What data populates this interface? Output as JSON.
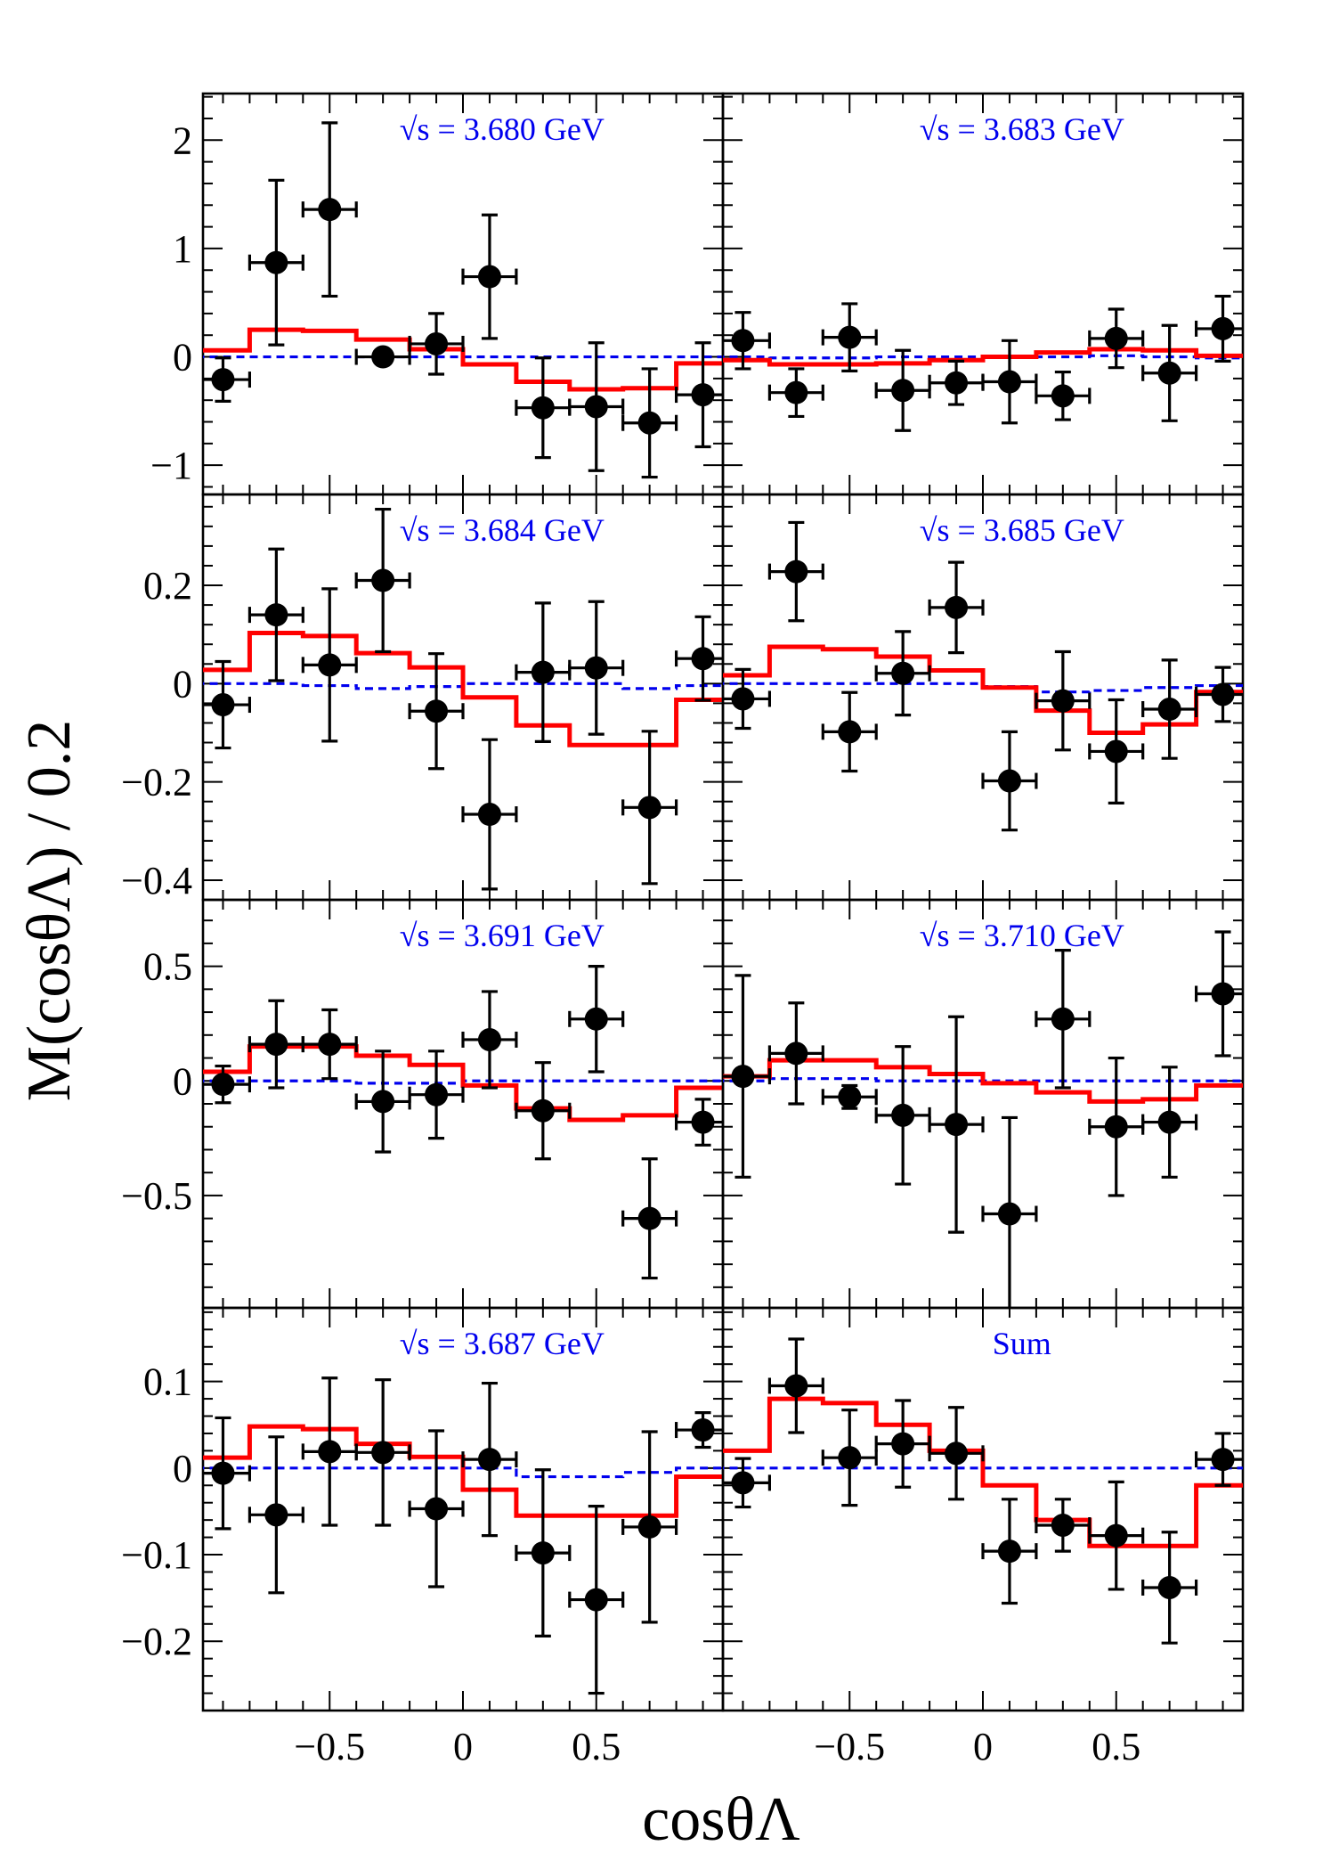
{
  "chart_data": {
    "type": "scatter",
    "xlabel": "cosθΛ",
    "ylabel": "M(cosθΛ) / 0.2",
    "xlim": [
      -0.975,
      0.975
    ],
    "x_ticks": [
      -0.5,
      0,
      0.5
    ],
    "x_tick_labels": [
      "−0.5",
      "0",
      "0.5"
    ],
    "bins": [
      -0.9,
      -0.7,
      -0.5,
      -0.3,
      -0.1,
      0.1,
      0.3,
      0.5,
      0.7,
      0.9
    ],
    "bin_half_width": 0.1,
    "legend": "none",
    "colors": {
      "data": "#000000",
      "fit": "#ff0000",
      "background": "#0000ee",
      "title": "#0000ee"
    },
    "series_names": [
      "data",
      "fit",
      "background"
    ],
    "panels": [
      {
        "title": "√s = 3.680 GeV",
        "ylim": [
          -1.27,
          2.43
        ],
        "y_ticks": [
          -1,
          0,
          1,
          2
        ],
        "y_tick_labels": [
          "−1",
          "0",
          "1",
          "2"
        ],
        "data": [
          -0.21,
          0.87,
          1.36,
          0.0,
          0.12,
          0.74,
          -0.47,
          -0.46,
          -0.61,
          -0.35
        ],
        "errors": [
          0.2,
          0.76,
          0.8,
          0.0,
          0.28,
          0.57,
          0.46,
          0.59,
          0.5,
          0.48
        ],
        "fit": [
          0.06,
          0.25,
          0.24,
          0.16,
          0.07,
          -0.07,
          -0.23,
          -0.3,
          -0.29,
          -0.06
        ],
        "background": [
          0.0,
          0.0,
          0.0,
          0.0,
          0.0,
          0.0,
          0.0,
          0.0,
          0.0,
          0.0
        ]
      },
      {
        "title": "√s = 3.683 GeV",
        "ylim": [
          -1.27,
          2.43
        ],
        "y_ticks": [
          -1,
          0,
          1,
          2
        ],
        "y_tick_labels": [
          "",
          "",
          "",
          ""
        ],
        "data": [
          0.15,
          -0.33,
          0.18,
          -0.31,
          -0.24,
          -0.23,
          -0.36,
          0.17,
          -0.15,
          0.26
        ],
        "errors": [
          0.26,
          0.22,
          0.31,
          0.37,
          0.2,
          0.38,
          0.22,
          0.27,
          0.44,
          0.3
        ],
        "fit": [
          -0.03,
          -0.07,
          -0.07,
          -0.06,
          -0.03,
          0.0,
          0.04,
          0.07,
          0.06,
          0.01
        ],
        "background": [
          0.0,
          -0.01,
          -0.01,
          0.0,
          0.0,
          0.0,
          0.0,
          0.01,
          0.0,
          -0.01
        ]
      },
      {
        "title": "√s = 3.684 GeV",
        "ylim": [
          -0.44,
          0.385
        ],
        "y_ticks": [
          -0.4,
          -0.2,
          0,
          0.2
        ],
        "y_tick_labels": [
          "−0.4",
          "−0.2",
          "0",
          "0.2"
        ],
        "data": [
          -0.043,
          0.14,
          0.038,
          0.21,
          -0.056,
          -0.266,
          0.023,
          0.032,
          -0.252,
          0.051
        ],
        "errors": [
          0.088,
          0.134,
          0.155,
          0.145,
          0.117,
          0.152,
          0.141,
          0.135,
          0.155,
          0.085
        ],
        "fit": [
          0.028,
          0.103,
          0.097,
          0.062,
          0.033,
          -0.028,
          -0.085,
          -0.125,
          -0.125,
          -0.033
        ],
        "background": [
          0.0,
          0.0,
          -0.004,
          -0.01,
          -0.006,
          0.0,
          0.0,
          0.0,
          -0.01,
          -0.004
        ]
      },
      {
        "title": "√s = 3.685 GeV",
        "ylim": [
          -0.44,
          0.385
        ],
        "y_ticks": [
          -0.4,
          -0.2,
          0,
          0.2
        ],
        "y_tick_labels": [
          "",
          "",
          "",
          ""
        ],
        "data": [
          -0.031,
          0.228,
          -0.098,
          0.021,
          0.155,
          -0.198,
          -0.035,
          -0.138,
          -0.052,
          -0.022
        ],
        "errors": [
          0.06,
          0.1,
          0.08,
          0.085,
          0.092,
          0.1,
          0.1,
          0.105,
          0.1,
          0.055
        ],
        "fit": [
          0.017,
          0.075,
          0.07,
          0.055,
          0.027,
          -0.008,
          -0.055,
          -0.1,
          -0.083,
          -0.017
        ],
        "background": [
          0.0,
          0.0,
          0.0,
          0.0,
          0.0,
          -0.006,
          -0.017,
          -0.014,
          -0.008,
          -0.004
        ]
      },
      {
        "title": "√s = 3.691 GeV",
        "ylim": [
          -0.99,
          0.79
        ],
        "y_ticks": [
          -0.5,
          0,
          0.5
        ],
        "y_tick_labels": [
          "−0.5",
          "0",
          "0.5"
        ],
        "data": [
          -0.015,
          0.16,
          0.16,
          -0.09,
          -0.06,
          0.18,
          -0.13,
          0.27,
          -0.6,
          -0.18
        ],
        "errors": [
          0.08,
          0.19,
          0.15,
          0.22,
          0.19,
          0.21,
          0.21,
          0.23,
          0.26,
          0.1
        ],
        "fit": [
          0.04,
          0.15,
          0.15,
          0.11,
          0.07,
          -0.02,
          -0.12,
          -0.17,
          -0.15,
          -0.03
        ],
        "background": [
          0.0,
          0.0,
          0.0,
          -0.01,
          -0.01,
          0.0,
          0.0,
          0.0,
          0.0,
          0.0
        ]
      },
      {
        "title": "√s = 3.710 GeV",
        "ylim": [
          -0.99,
          0.79
        ],
        "y_ticks": [
          -0.5,
          0,
          0.5
        ],
        "y_tick_labels": [
          "",
          "",
          "",
          ""
        ],
        "data": [
          0.02,
          0.12,
          -0.07,
          -0.15,
          -0.19,
          -0.58,
          0.27,
          -0.2,
          -0.18,
          0.38
        ],
        "errors": [
          0.44,
          0.22,
          0.05,
          0.3,
          0.47,
          0.42,
          0.3,
          0.3,
          0.24,
          0.27
        ],
        "fit": [
          0.02,
          0.09,
          0.09,
          0.06,
          0.03,
          -0.01,
          -0.05,
          -0.09,
          -0.08,
          -0.02
        ],
        "background": [
          0.0,
          0.01,
          0.01,
          0.0,
          0.0,
          0.0,
          0.0,
          0.0,
          0.0,
          0.0
        ]
      },
      {
        "title": "√s = 3.687 GeV",
        "ylim": [
          -0.28,
          0.185
        ],
        "y_ticks": [
          -0.2,
          -0.1,
          0,
          0.1
        ],
        "y_tick_labels": [
          "−0.2",
          "−0.1",
          "0",
          "0.1"
        ],
        "data": [
          -0.006,
          -0.054,
          0.019,
          0.018,
          -0.047,
          0.01,
          -0.098,
          -0.152,
          -0.068,
          0.044
        ],
        "errors": [
          0.064,
          0.09,
          0.085,
          0.084,
          0.09,
          0.088,
          0.096,
          0.108,
          0.11,
          0.02
        ],
        "fit": [
          0.012,
          0.048,
          0.045,
          0.028,
          0.013,
          -0.025,
          -0.055,
          -0.055,
          -0.055,
          -0.01
        ],
        "background": [
          0.0,
          0.0,
          0.0,
          0.0,
          0.0,
          0.0,
          -0.01,
          -0.01,
          -0.005,
          0.0
        ]
      },
      {
        "title": "Sum",
        "ylim": [
          -0.28,
          0.185
        ],
        "y_ticks": [
          -0.2,
          -0.1,
          0,
          0.1
        ],
        "y_tick_labels": [
          "",
          "",
          "",
          ""
        ],
        "data": [
          -0.017,
          0.095,
          0.012,
          0.028,
          0.017,
          -0.096,
          -0.066,
          -0.078,
          -0.138,
          0.01
        ],
        "errors": [
          0.028,
          0.054,
          0.055,
          0.05,
          0.053,
          0.06,
          0.03,
          0.062,
          0.064,
          0.03
        ],
        "fit": [
          0.02,
          0.08,
          0.075,
          0.05,
          0.02,
          -0.02,
          -0.06,
          -0.09,
          -0.09,
          -0.02
        ],
        "background": [
          0.0,
          0.0,
          0.0,
          0.0,
          0.0,
          0.0,
          0.0,
          0.0,
          0.0,
          0.0
        ]
      }
    ]
  }
}
